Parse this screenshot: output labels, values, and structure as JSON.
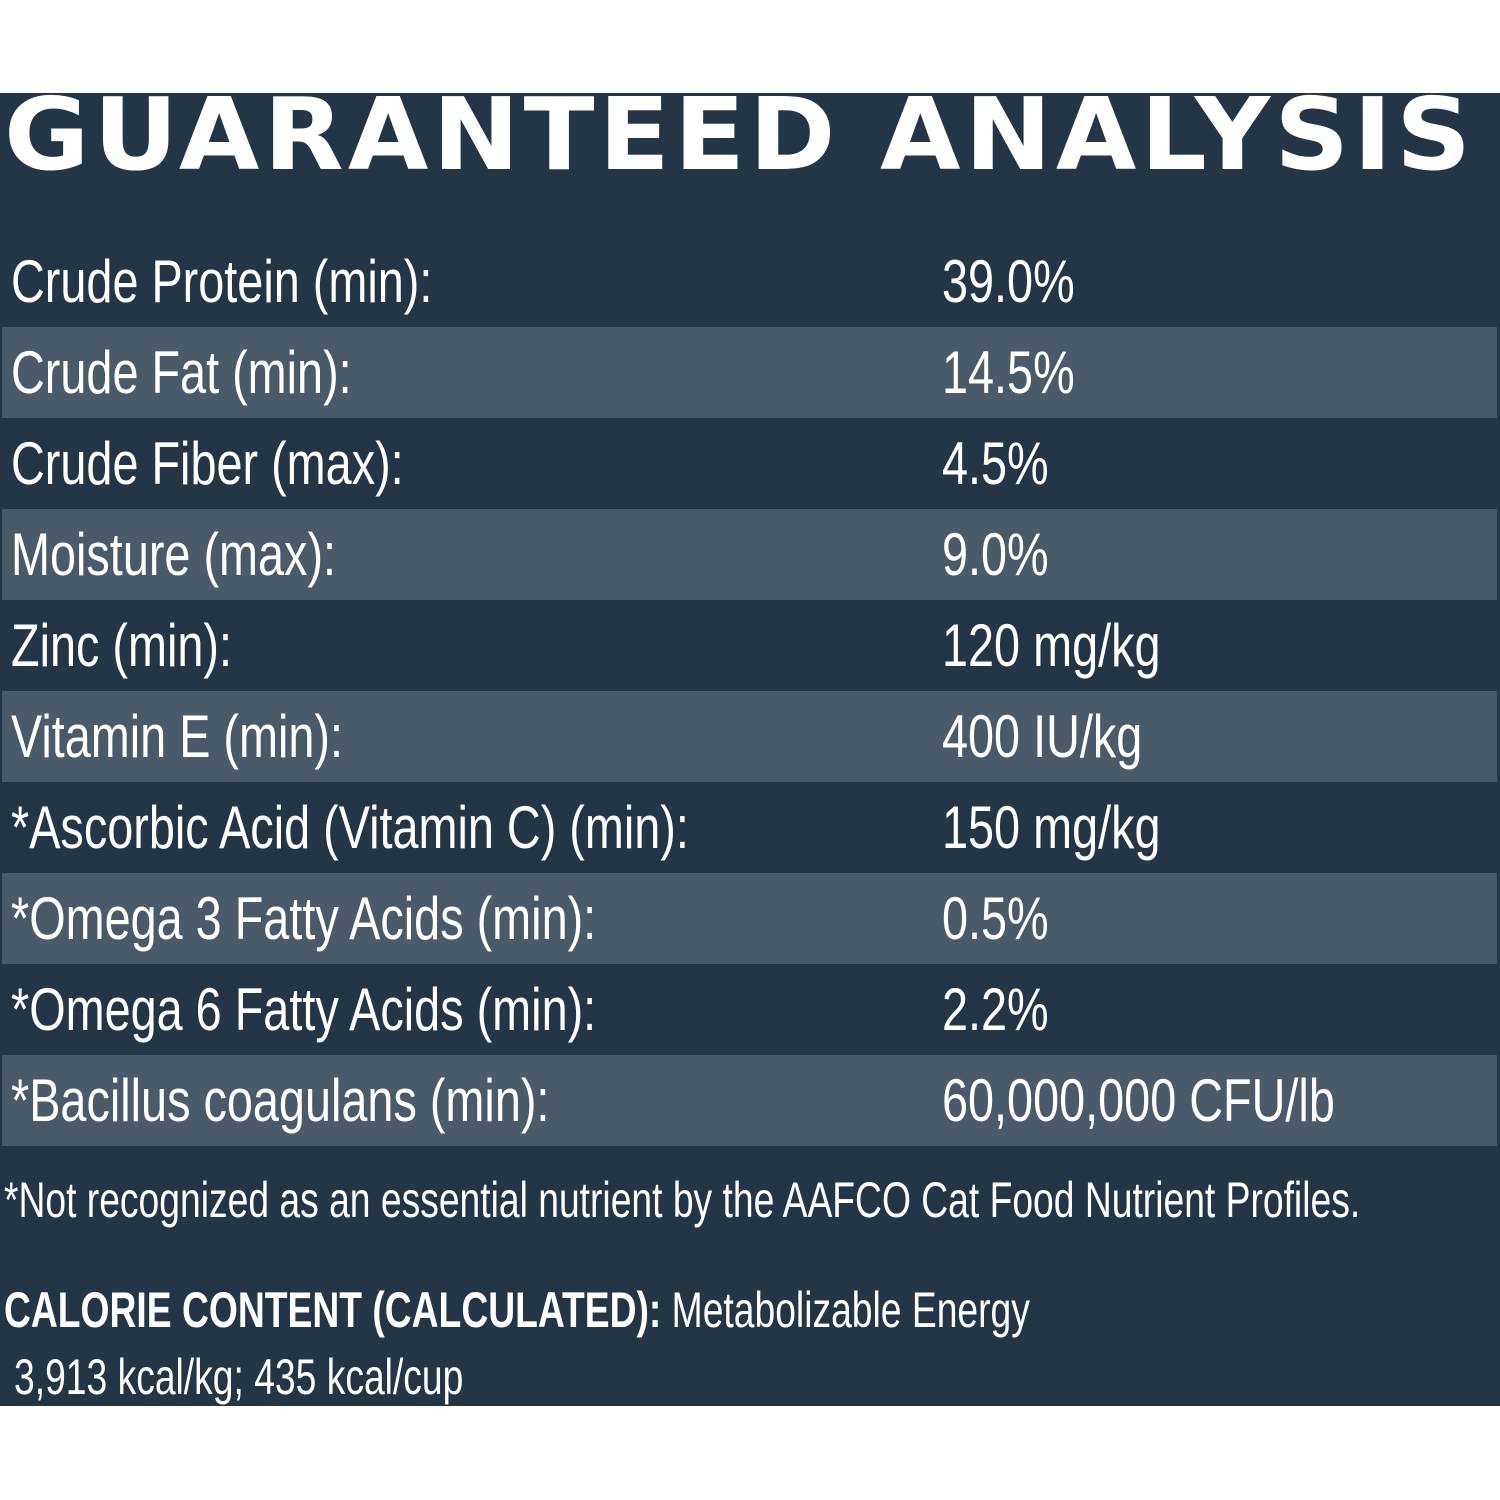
{
  "title": "GUARANTEED ANALYSIS",
  "colors": {
    "panel_background": "#243646",
    "stripe_background": "#4b5a68",
    "text": "#ffffff",
    "page_background": "#ffffff"
  },
  "rows": [
    {
      "label": "Crude Protein (min):",
      "value": "39.0%"
    },
    {
      "label": "Crude Fat (min):",
      "value": "14.5%"
    },
    {
      "label": "Crude Fiber (max):",
      "value": "4.5%"
    },
    {
      "label": "Moisture (max):",
      "value": "9.0%"
    },
    {
      "label": "Zinc (min):",
      "value": "120 mg/kg"
    },
    {
      "label": "Vitamin E (min):",
      "value": "400 IU/kg"
    },
    {
      "label": "*Ascorbic Acid (Vitamin C) (min):",
      "value": "150 mg/kg"
    },
    {
      "label": "*Omega 3 Fatty Acids (min):",
      "value": "0.5%"
    },
    {
      "label": "*Omega 6 Fatty Acids (min):",
      "value": "2.2%"
    },
    {
      "label": "*Bacillus coagulans (min):",
      "value": "60,000,000 CFU/lb"
    }
  ],
  "footnote": "*Not recognized as an essential nutrient by the AAFCO Cat Food Nutrient Profiles.",
  "calorie": {
    "heading": "CALORIE CONTENT (CALCULATED):",
    "description": " Metabolizable Energy",
    "values": "3,913 kcal/kg; 435 kcal/cup"
  }
}
